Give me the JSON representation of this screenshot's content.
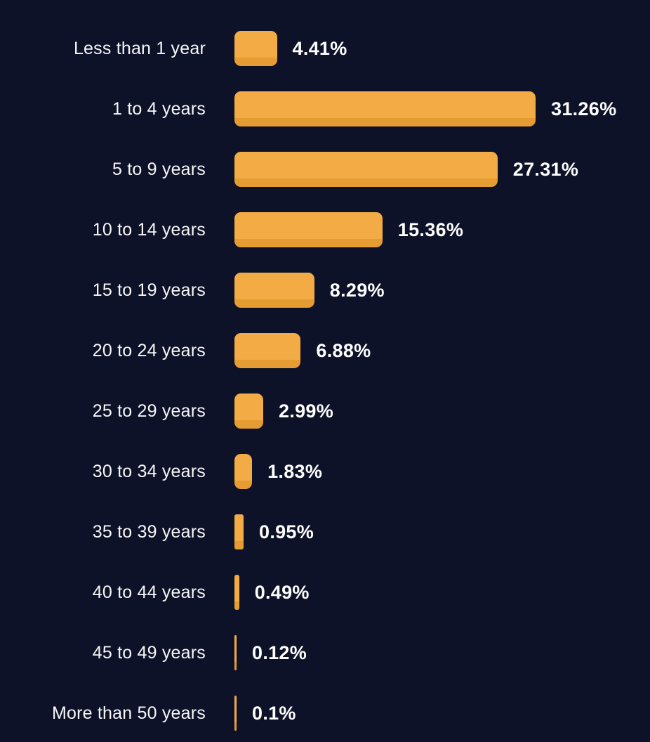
{
  "chart_data": {
    "type": "bar",
    "orientation": "horizontal",
    "title": "",
    "xlabel": "",
    "ylabel": "",
    "categories": [
      "Less than 1 year",
      "1 to 4 years",
      "5 to 9 years",
      "10 to 14 years",
      "15 to 19 years",
      "20 to 24 years",
      "25 to 29 years",
      "30 to 34 years",
      "35 to 39 years",
      "40 to 44 years",
      "45 to 49 years",
      "More than 50 years"
    ],
    "values": [
      4.41,
      31.26,
      27.31,
      15.36,
      8.29,
      6.88,
      2.99,
      1.83,
      0.95,
      0.49,
      0.12,
      0.1
    ],
    "value_labels": [
      "4.41%",
      "31.26%",
      "27.31%",
      "15.36%",
      "8.29%",
      "6.88%",
      "2.99%",
      "1.83%",
      "0.95%",
      "0.49%",
      "0.12%",
      "0.1%"
    ],
    "xlim": [
      0,
      31.26
    ],
    "grid": false,
    "legend": null,
    "colors": {
      "bar_fill": "#f2ab45",
      "bar_bottom_shade": "#e59c33",
      "background": "#0d1228",
      "label_text": "#f7f7f8",
      "value_text": "#ffffff"
    }
  }
}
